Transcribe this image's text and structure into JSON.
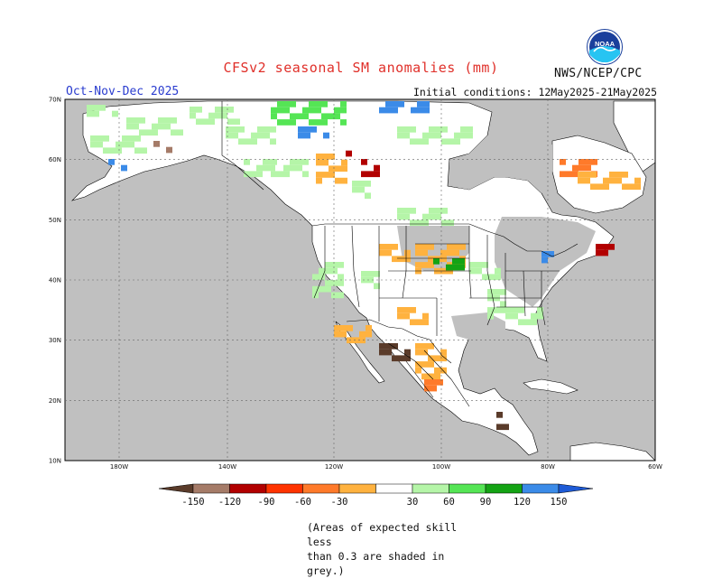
{
  "header": {
    "title": "CFSv2 seasonal SM anomalies (mm)",
    "period": "Oct-Nov-Dec 2025",
    "initial_conditions": "Initial conditions: 12May2025-21May2025",
    "agency": "NWS/NCEP/CPC",
    "logo_text": "NOAA"
  },
  "map": {
    "lat_labels": [
      "70N",
      "60N",
      "50N",
      "40N",
      "30N",
      "20N",
      "10N"
    ],
    "lon_labels": [
      "180W",
      "140W",
      "120W",
      "100W",
      "80W",
      "60W"
    ],
    "grey_color": "#c0c0c0",
    "land_color": "#ffffff",
    "line_color": "#000000"
  },
  "colorbar": {
    "labels": [
      "-150",
      "-120",
      "-90",
      "-60",
      "-30",
      "30",
      "60",
      "90",
      "120",
      "150"
    ],
    "colors": [
      "#5a3b2a",
      "#a57b68",
      "#b20000",
      "#ff3300",
      "#ff7a2a",
      "#ffb23f",
      "#ffffff",
      "#b5f5a8",
      "#55e555",
      "#14a314",
      "#3b8be8",
      "#1e5bd6"
    ]
  },
  "footer": {
    "line1": "(Areas of expected skill less",
    "line2": "than 0.3 are shaded in grey.)"
  }
}
